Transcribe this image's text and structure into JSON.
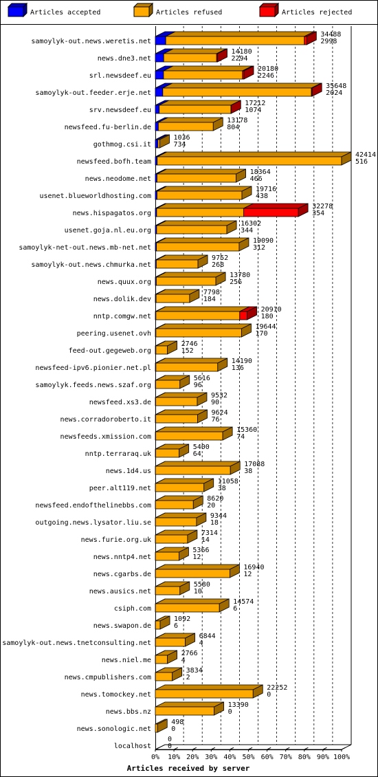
{
  "chart_data": {
    "type": "bar",
    "orientation": "horizontal",
    "stacking": "stacked",
    "xlabel": "Articles received by server",
    "xlim": [
      0,
      100
    ],
    "x_unit": "%",
    "x_ticks": [
      "0%",
      "10%",
      "20%",
      "30%",
      "40%",
      "50%",
      "60%",
      "70%",
      "80%",
      "90%",
      "100%"
    ],
    "grid": "vertical dashed",
    "legend_position": "top",
    "series": [
      {
        "name": "Articles accepted",
        "color": "#0000ff"
      },
      {
        "name": "Articles refused",
        "color": "#ffaa00"
      },
      {
        "name": "Articles rejected",
        "color": "#ff0000"
      }
    ],
    "categories": [
      {
        "name": "samoylyk-out.news.weretis.net",
        "accepted_pct": 5.6,
        "refused_pct": 74.4,
        "rejected_pct": 1.3,
        "label_total": "34488",
        "label_accepted": "2998"
      },
      {
        "name": "news.dne3.net",
        "accepted_pct": 4.5,
        "refused_pct": 28.4,
        "rejected_pct": 0.5,
        "label_total": "14180",
        "label_accepted": "2294"
      },
      {
        "name": "srl.newsdeef.eu",
        "accepted_pct": 4.4,
        "refused_pct": 42.4,
        "rejected_pct": 0.8,
        "label_total": "20180",
        "label_accepted": "2246"
      },
      {
        "name": "samoylyk-out.feeder.erje.net",
        "accepted_pct": 4.0,
        "refused_pct": 79.8,
        "rejected_pct": 0.4,
        "label_total": "35648",
        "label_accepted": "2024"
      },
      {
        "name": "srv.newsdeef.eu",
        "accepted_pct": 2.1,
        "refused_pct": 38.5,
        "rejected_pct": 0.1,
        "label_total": "17212",
        "label_accepted": "1074"
      },
      {
        "name": "newsfeed.fu-berlin.de",
        "accepted_pct": 1.6,
        "refused_pct": 29.5,
        "rejected_pct": 0.0,
        "label_total": "13178",
        "label_accepted": "804"
      },
      {
        "name": "gothmog.csi.it",
        "accepted_pct": 1.4,
        "refused_pct": 1.0,
        "rejected_pct": 0.0,
        "label_total": "1036",
        "label_accepted": "734"
      },
      {
        "name": "newsfeed.bofh.team",
        "accepted_pct": 1.0,
        "refused_pct": 99.0,
        "rejected_pct": 0.0,
        "label_total": "42414",
        "label_accepted": "516"
      },
      {
        "name": "news.neodome.net",
        "accepted_pct": 0.9,
        "refused_pct": 42.5,
        "rejected_pct": 0.0,
        "label_total": "18364",
        "label_accepted": "466"
      },
      {
        "name": "usenet.blueworldhosting.com",
        "accepted_pct": 0.9,
        "refused_pct": 45.6,
        "rejected_pct": 0.0,
        "label_total": "19716",
        "label_accepted": "438"
      },
      {
        "name": "news.hispagatos.org",
        "accepted_pct": 0.7,
        "refused_pct": 46.7,
        "rejected_pct": 29.4,
        "label_total": "32278",
        "label_accepted": "354"
      },
      {
        "name": "usenet.goja.nl.eu.org",
        "accepted_pct": 0.7,
        "refused_pct": 37.7,
        "rejected_pct": 0.0,
        "label_total": "16302",
        "label_accepted": "344"
      },
      {
        "name": "samoylyk-net-out.news.mb-net.net",
        "accepted_pct": 0.6,
        "refused_pct": 44.4,
        "rejected_pct": 0.0,
        "label_total": "19090",
        "label_accepted": "312"
      },
      {
        "name": "samoylyk-out.news.chmurka.net",
        "accepted_pct": 0.5,
        "refused_pct": 22.4,
        "rejected_pct": 0.0,
        "label_total": "9752",
        "label_accepted": "268"
      },
      {
        "name": "news.quux.org",
        "accepted_pct": 0.5,
        "refused_pct": 32.0,
        "rejected_pct": 0.0,
        "label_total": "13780",
        "label_accepted": "256"
      },
      {
        "name": "news.dolik.dev",
        "accepted_pct": 0.4,
        "refused_pct": 18.0,
        "rejected_pct": 0.0,
        "label_total": "7798",
        "label_accepted": "184"
      },
      {
        "name": "nntp.comgw.net",
        "accepted_pct": 0.3,
        "refused_pct": 45.0,
        "rejected_pct": 4.0,
        "label_total": "20910",
        "label_accepted": "180"
      },
      {
        "name": "peering.usenet.ovh",
        "accepted_pct": 0.3,
        "refused_pct": 46.0,
        "rejected_pct": 0.0,
        "label_total": "19644",
        "label_accepted": "170"
      },
      {
        "name": "feed-out.gegeweb.org",
        "accepted_pct": 0.3,
        "refused_pct": 6.2,
        "rejected_pct": 0.0,
        "label_total": "2746",
        "label_accepted": "152"
      },
      {
        "name": "newsfeed-ipv6.pionier.net.pl",
        "accepted_pct": 0.3,
        "refused_pct": 33.2,
        "rejected_pct": 0.0,
        "label_total": "14190",
        "label_accepted": "136"
      },
      {
        "name": "samoylyk.feeds.news.szaf.org",
        "accepted_pct": 0.2,
        "refused_pct": 13.0,
        "rejected_pct": 0.0,
        "label_total": "5616",
        "label_accepted": "96"
      },
      {
        "name": "newsfeed.xs3.de",
        "accepted_pct": 0.2,
        "refused_pct": 22.3,
        "rejected_pct": 0.0,
        "label_total": "9532",
        "label_accepted": "90"
      },
      {
        "name": "news.corradoroberto.it",
        "accepted_pct": 0.2,
        "refused_pct": 22.5,
        "rejected_pct": 0.0,
        "label_total": "9624",
        "label_accepted": "76"
      },
      {
        "name": "newsfeeds.xmission.com",
        "accepted_pct": 0.2,
        "refused_pct": 36.0,
        "rejected_pct": 0.0,
        "label_total": "15360",
        "label_accepted": "74"
      },
      {
        "name": "nntp.terraraq.uk",
        "accepted_pct": 0.2,
        "refused_pct": 12.6,
        "rejected_pct": 0.0,
        "label_total": "5400",
        "label_accepted": "64"
      },
      {
        "name": "news.1d4.us",
        "accepted_pct": 0.1,
        "refused_pct": 40.2,
        "rejected_pct": 0.0,
        "label_total": "17088",
        "label_accepted": "38"
      },
      {
        "name": "peer.alt119.net",
        "accepted_pct": 0.1,
        "refused_pct": 26.0,
        "rejected_pct": 0.0,
        "label_total": "11058",
        "label_accepted": "38"
      },
      {
        "name": "newsfeed.endofthelinebbs.com",
        "accepted_pct": 0.1,
        "refused_pct": 20.3,
        "rejected_pct": 0.0,
        "label_total": "8620",
        "label_accepted": "20"
      },
      {
        "name": "outgoing.news.lysator.liu.se",
        "accepted_pct": 0.1,
        "refused_pct": 22.0,
        "rejected_pct": 0.0,
        "label_total": "9344",
        "label_accepted": "18"
      },
      {
        "name": "news.furie.org.uk",
        "accepted_pct": 0.1,
        "refused_pct": 17.2,
        "rejected_pct": 0.0,
        "label_total": "7314",
        "label_accepted": "14"
      },
      {
        "name": "news.nntp4.net",
        "accepted_pct": 0.1,
        "refused_pct": 12.6,
        "rejected_pct": 0.0,
        "label_total": "5366",
        "label_accepted": "12"
      },
      {
        "name": "news.cgarbs.de",
        "accepted_pct": 0.1,
        "refused_pct": 39.9,
        "rejected_pct": 0.0,
        "label_total": "16940",
        "label_accepted": "12"
      },
      {
        "name": "news.ausics.net",
        "accepted_pct": 0.1,
        "refused_pct": 13.1,
        "rejected_pct": 0.0,
        "label_total": "5580",
        "label_accepted": "10"
      },
      {
        "name": "csiph.com",
        "accepted_pct": 0.1,
        "refused_pct": 34.3,
        "rejected_pct": 0.0,
        "label_total": "14574",
        "label_accepted": "6"
      },
      {
        "name": "news.swapon.de",
        "accepted_pct": 0.1,
        "refused_pct": 2.5,
        "rejected_pct": 0.0,
        "label_total": "1092",
        "label_accepted": "6"
      },
      {
        "name": "samoylyk-out.news.tnetconsulting.net",
        "accepted_pct": 0.1,
        "refused_pct": 16.0,
        "rejected_pct": 0.0,
        "label_total": "6844",
        "label_accepted": "4"
      },
      {
        "name": "news.niel.me",
        "accepted_pct": 0.1,
        "refused_pct": 6.4,
        "rejected_pct": 0.0,
        "label_total": "2766",
        "label_accepted": "4"
      },
      {
        "name": "news.cmpublishers.com",
        "accepted_pct": 0.1,
        "refused_pct": 9.0,
        "rejected_pct": 0.0,
        "label_total": "3834",
        "label_accepted": "2"
      },
      {
        "name": "news.tomockey.net",
        "accepted_pct": 0.0,
        "refused_pct": 52.5,
        "rejected_pct": 0.0,
        "label_total": "22252",
        "label_accepted": "0"
      },
      {
        "name": "news.bbs.nz",
        "accepted_pct": 0.0,
        "refused_pct": 31.6,
        "rejected_pct": 0.0,
        "label_total": "13390",
        "label_accepted": "0"
      },
      {
        "name": "news.sonologic.net",
        "accepted_pct": 0.0,
        "refused_pct": 1.2,
        "rejected_pct": 0.0,
        "label_total": "498",
        "label_accepted": "0"
      },
      {
        "name": "localhost",
        "accepted_pct": 0.0,
        "refused_pct": 0.0,
        "rejected_pct": 0.0,
        "label_total": "0",
        "label_accepted": "0"
      }
    ]
  }
}
